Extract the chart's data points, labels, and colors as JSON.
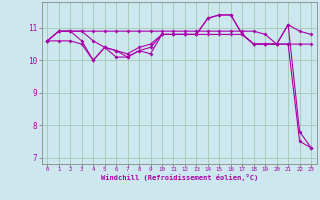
{
  "xlabel": "Windchill (Refroidissement éolien,°C)",
  "bg_color": "#cce8ee",
  "grid_color": "#aaccbb",
  "line_color": "#aa00aa",
  "x": [
    0,
    1,
    2,
    3,
    4,
    5,
    6,
    7,
    8,
    9,
    10,
    11,
    12,
    13,
    14,
    15,
    16,
    17,
    18,
    19,
    20,
    21,
    22,
    23
  ],
  "series_flat": [
    10.6,
    10.9,
    10.9,
    10.9,
    10.9,
    10.9,
    10.9,
    10.9,
    10.9,
    10.9,
    10.9,
    10.9,
    10.9,
    10.9,
    10.9,
    10.9,
    10.9,
    10.9,
    10.9,
    10.8,
    10.5,
    10.5,
    10.5,
    10.5
  ],
  "series_wavy": [
    10.6,
    10.9,
    10.9,
    10.6,
    10.0,
    10.4,
    10.3,
    10.1,
    10.3,
    10.4,
    10.8,
    10.8,
    10.8,
    10.8,
    11.3,
    11.4,
    11.4,
    10.8,
    10.5,
    10.5,
    10.5,
    11.1,
    10.9,
    10.8
  ],
  "series_mid": [
    10.6,
    10.9,
    10.9,
    10.9,
    10.6,
    10.4,
    10.3,
    10.2,
    10.4,
    10.5,
    10.8,
    10.8,
    10.8,
    10.8,
    10.8,
    10.8,
    10.8,
    10.8,
    10.5,
    10.5,
    10.5,
    10.5,
    7.5,
    7.3
  ],
  "series_drop": [
    10.6,
    10.6,
    10.6,
    10.5,
    10.0,
    10.4,
    10.1,
    10.1,
    10.3,
    10.2,
    10.8,
    10.8,
    10.8,
    10.8,
    11.3,
    11.4,
    11.4,
    10.8,
    10.5,
    10.5,
    10.5,
    11.1,
    7.8,
    7.3
  ],
  "ylim": [
    6.8,
    11.8
  ],
  "yticks": [
    7,
    8,
    9,
    10,
    11
  ],
  "xlim": [
    -0.5,
    23.5
  ],
  "xtick_labels": [
    "0",
    "1",
    "2",
    "3",
    "4",
    "5",
    "6",
    "7",
    "8",
    "9",
    "10",
    "11",
    "12",
    "13",
    "14",
    "15",
    "16",
    "17",
    "18",
    "19",
    "20",
    "21",
    "22",
    "23"
  ]
}
